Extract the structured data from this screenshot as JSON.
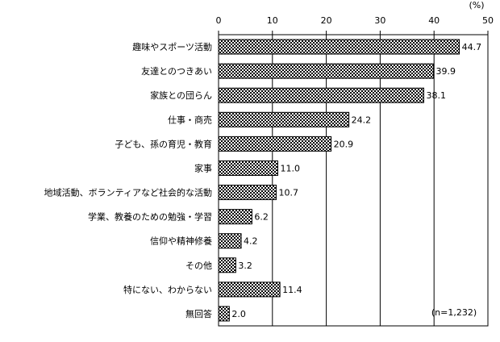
{
  "chart_data": {
    "type": "bar",
    "orientation": "horizontal",
    "categories": [
      "趣味やスポーツ活動",
      "友達とのつきあい",
      "家族との団らん",
      "仕事・商売",
      "子ども、孫の育児・教育",
      "家事",
      "地域活動、ボランティアなど社会的な活動",
      "学業、教養のための勉強・学習",
      "信仰や精神修養",
      "その他",
      "特にない、わからない",
      "無回答"
    ],
    "values": [
      44.7,
      39.9,
      38.1,
      24.2,
      20.9,
      11.0,
      10.7,
      6.2,
      4.2,
      3.2,
      11.4,
      2.0
    ],
    "value_labels": [
      "44.7",
      "39.9",
      "38.1",
      "24.2",
      "20.9",
      "11.0",
      "10.7",
      "6.2",
      "4.2",
      "3.2",
      "11.4",
      "2.0"
    ],
    "xlim": [
      0,
      50
    ],
    "x_ticks": [
      0,
      10,
      20,
      30,
      40,
      50
    ],
    "x_tick_labels": [
      "0",
      "10",
      "20",
      "30",
      "40",
      "50"
    ],
    "unit": "(%)",
    "note": "(n=1,232)",
    "grid": true,
    "bar_pattern": "checkered",
    "bar_color": "#000000"
  }
}
